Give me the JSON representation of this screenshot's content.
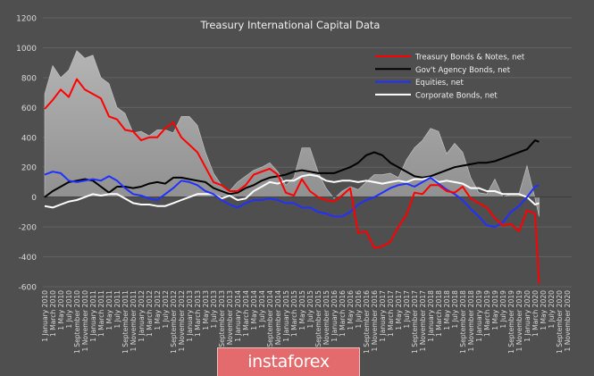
{
  "chart_data": {
    "type": "line",
    "title": "Treasury International Capital Data",
    "xlabel": "",
    "ylabel": "",
    "ylim": [
      -600,
      1200
    ],
    "yticks": [
      -600,
      -400,
      -200,
      0,
      200,
      400,
      600,
      800,
      1000,
      1200
    ],
    "grid": true,
    "legend_position": "top-right",
    "xtick_labels": [
      "1 January 2010",
      "1 March 2010",
      "1 May 2010",
      "1 July 2010",
      "1 September 2010",
      "1 November 2010",
      "1 January 2011",
      "1 March 2011",
      "1 May 2011",
      "1 July 2011",
      "1 September 2011",
      "1 November 2011",
      "1 January 2012",
      "1 March 2012",
      "1 May 2012",
      "1 July 2012",
      "1 September 2012",
      "1 November 2012",
      "1 January 2013",
      "1 March 2013",
      "1 May 2013",
      "1 July 2013",
      "1 September 2013",
      "1 November 2013",
      "1 January 2014",
      "1 March 2014",
      "1 May 2014",
      "1 July 2014",
      "1 September 2014",
      "1 November 2014",
      "1 January 2015",
      "1 March 2015",
      "1 May 2015",
      "1 July 2015",
      "1 September 2015",
      "1 November 2015",
      "1 January 2016",
      "1 March 2016",
      "1 May 2016",
      "1 July 2016",
      "1 September 2016",
      "1 November 2016",
      "1 January 2017",
      "1 March 2017",
      "1 May 2017",
      "1 July 2017",
      "1 September 2017",
      "1 November 2017",
      "1 January 2018",
      "1 March 2018",
      "1 May 2018",
      "1 July 2018",
      "1 September 2018",
      "1 November 2018",
      "1 January 2019",
      "1 March 2019",
      "1 May 2019",
      "1 July 2019",
      "1 September 2019",
      "1 November 2019",
      "1 January 2020",
      "1 March 2020",
      "1 May 2020",
      "1 July 2020",
      "1 September 2020",
      "1 November 2020"
    ],
    "x": [
      "2010-01",
      "2010-03",
      "2010-05",
      "2010-07",
      "2010-09",
      "2010-11",
      "2011-01",
      "2011-03",
      "2011-05",
      "2011-07",
      "2011-09",
      "2011-11",
      "2012-01",
      "2012-03",
      "2012-05",
      "2012-07",
      "2012-09",
      "2012-11",
      "2013-01",
      "2013-03",
      "2013-05",
      "2013-07",
      "2013-09",
      "2013-11",
      "2014-01",
      "2014-03",
      "2014-05",
      "2014-07",
      "2014-09",
      "2014-11",
      "2015-01",
      "2015-03",
      "2015-05",
      "2015-07",
      "2015-09",
      "2015-11",
      "2016-01",
      "2016-03",
      "2016-05",
      "2016-07",
      "2016-09",
      "2016-11",
      "2017-01",
      "2017-03",
      "2017-05",
      "2017-07",
      "2017-09",
      "2017-11",
      "2018-01",
      "2018-03",
      "2018-05",
      "2018-07",
      "2018-09",
      "2018-11",
      "2019-01",
      "2019-03",
      "2019-05",
      "2019-07",
      "2019-09",
      "2019-11",
      "2020-01",
      "2020-03",
      "2020-04"
    ],
    "area_total": {
      "color": "#9a9a9a",
      "values": [
        690,
        880,
        800,
        850,
        980,
        930,
        950,
        800,
        760,
        600,
        560,
        430,
        440,
        410,
        450,
        450,
        430,
        540,
        540,
        480,
        300,
        160,
        80,
        40,
        100,
        140,
        180,
        200,
        230,
        170,
        80,
        130,
        330,
        330,
        170,
        60,
        -10,
        40,
        70,
        50,
        100,
        150,
        150,
        160,
        130,
        250,
        330,
        380,
        460,
        440,
        290,
        360,
        300,
        130,
        30,
        20,
        120,
        0,
        20,
        20,
        210,
        -10,
        -130
      ]
    },
    "series": [
      {
        "name": "Treasury Bonds & Notes, net",
        "color": "#ff0000",
        "values": [
          590,
          650,
          720,
          670,
          790,
          720,
          690,
          660,
          540,
          520,
          450,
          440,
          380,
          400,
          400,
          460,
          500,
          400,
          350,
          300,
          200,
          100,
          80,
          40,
          40,
          80,
          150,
          170,
          190,
          150,
          30,
          10,
          120,
          40,
          0,
          -20,
          -30,
          10,
          60,
          -240,
          -230,
          -340,
          -330,
          -300,
          -200,
          -120,
          30,
          20,
          80,
          80,
          40,
          30,
          70,
          -10,
          -40,
          -70,
          -140,
          -190,
          -180,
          -230,
          -90,
          -110,
          -580
        ]
      },
      {
        "name": "Gov't Agency Bonds, net",
        "color": "#000000",
        "values": [
          0,
          40,
          70,
          100,
          110,
          120,
          110,
          70,
          30,
          70,
          70,
          60,
          70,
          90,
          100,
          90,
          130,
          130,
          120,
          110,
          100,
          60,
          40,
          20,
          30,
          60,
          80,
          110,
          130,
          140,
          150,
          170,
          180,
          170,
          160,
          160,
          160,
          180,
          200,
          230,
          280,
          300,
          280,
          230,
          200,
          170,
          140,
          130,
          140,
          160,
          180,
          200,
          210,
          220,
          230,
          230,
          240,
          260,
          280,
          300,
          320,
          380,
          370
        ]
      },
      {
        "name": "Equities, net",
        "color": "#2030ff",
        "values": [
          150,
          170,
          160,
          110,
          100,
          110,
          120,
          110,
          140,
          110,
          60,
          20,
          10,
          -10,
          -20,
          20,
          60,
          110,
          100,
          80,
          40,
          20,
          -20,
          -50,
          -70,
          -40,
          -20,
          -20,
          -10,
          -20,
          -40,
          -40,
          -70,
          -70,
          -100,
          -110,
          -130,
          -130,
          -100,
          -50,
          -20,
          0,
          30,
          60,
          80,
          90,
          70,
          100,
          130,
          90,
          50,
          20,
          -20,
          -80,
          -130,
          -190,
          -200,
          -170,
          -100,
          -60,
          0,
          70,
          80
        ]
      },
      {
        "name": "Corporate Bonds, net",
        "color": "#ffffff",
        "values": [
          -60,
          -70,
          -50,
          -30,
          -20,
          0,
          20,
          10,
          20,
          20,
          -10,
          -40,
          -50,
          -50,
          -60,
          -60,
          -40,
          -20,
          0,
          20,
          20,
          20,
          -10,
          10,
          -20,
          -10,
          40,
          70,
          100,
          90,
          110,
          110,
          140,
          150,
          140,
          110,
          100,
          110,
          110,
          100,
          110,
          100,
          90,
          100,
          110,
          100,
          120,
          120,
          130,
          100,
          110,
          100,
          90,
          60,
          60,
          40,
          40,
          20,
          20,
          20,
          0,
          -50,
          -40
        ]
      }
    ]
  },
  "watermark": {
    "text": "instaforex",
    "color": "#e46b6d"
  }
}
